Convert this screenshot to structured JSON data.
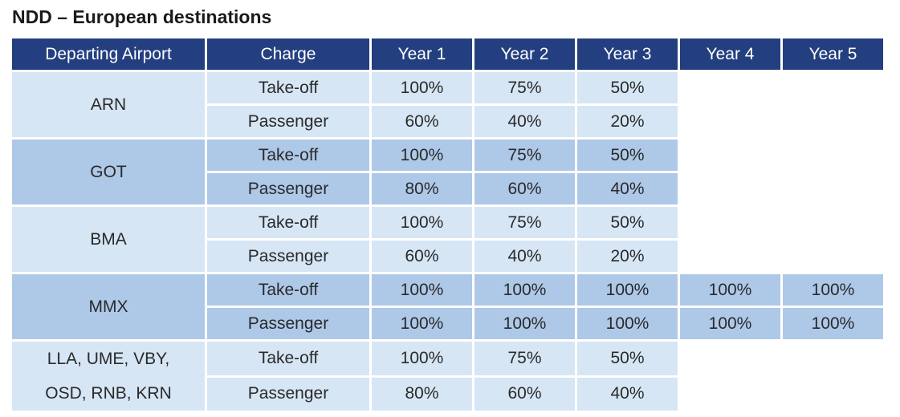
{
  "title": "NDD – European destinations",
  "table": {
    "headers": [
      "Departing Airport",
      "Charge",
      "Year 1",
      "Year 2",
      "Year 3",
      "Year 4",
      "Year 5"
    ],
    "groups": [
      {
        "airport_lines": [
          "ARN"
        ],
        "shade": "light",
        "rows": [
          {
            "charge": "Take-off",
            "values": [
              "100%",
              "75%",
              "50%"
            ]
          },
          {
            "charge": "Passenger",
            "values": [
              "60%",
              "40%",
              "20%"
            ]
          }
        ]
      },
      {
        "airport_lines": [
          "GOT"
        ],
        "shade": "dark",
        "rows": [
          {
            "charge": "Take-off",
            "values": [
              "100%",
              "75%",
              "50%"
            ]
          },
          {
            "charge": "Passenger",
            "values": [
              "80%",
              "60%",
              "40%"
            ]
          }
        ]
      },
      {
        "airport_lines": [
          "BMA"
        ],
        "shade": "light",
        "rows": [
          {
            "charge": "Take-off",
            "values": [
              "100%",
              "75%",
              "50%"
            ]
          },
          {
            "charge": "Passenger",
            "values": [
              "60%",
              "40%",
              "20%"
            ]
          }
        ]
      },
      {
        "airport_lines": [
          "MMX"
        ],
        "shade": "dark",
        "rows": [
          {
            "charge": "Take-off",
            "values": [
              "100%",
              "100%",
              "100%",
              "100%",
              "100%"
            ]
          },
          {
            "charge": "Passenger",
            "values": [
              "100%",
              "100%",
              "100%",
              "100%",
              "100%"
            ]
          }
        ]
      },
      {
        "airport_lines": [
          "LLA, UME, VBY,",
          "OSD, RNB, KRN"
        ],
        "shade": "light",
        "rows": [
          {
            "charge": "Take-off",
            "values": [
              "100%",
              "75%",
              "50%"
            ]
          },
          {
            "charge": "Passenger",
            "values": [
              "80%",
              "60%",
              "40%"
            ]
          }
        ]
      }
    ]
  },
  "colors": {
    "header_bg": "#233f7f",
    "row_light": "#d6e6f5",
    "row_dark": "#aec8e8"
  }
}
